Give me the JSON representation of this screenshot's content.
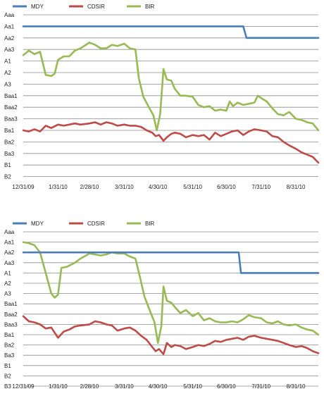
{
  "chart_data": [
    {
      "type": "line",
      "title": "",
      "xlabel": "",
      "ylabel": "",
      "legend_position": "top-left",
      "grid": true,
      "y_categories": [
        "Aaa",
        "Aa1",
        "Aa2",
        "Aa3",
        "A1",
        "A2",
        "A3",
        "Baa1",
        "Baa2",
        "Baa3",
        "Ba1",
        "Ba2",
        "Ba3",
        "B1",
        "B2"
      ],
      "x_tick_labels": [
        "12/31/09",
        "1/31/10",
        "2/28/10",
        "3/31/10",
        "4/30/10",
        "5/31/10",
        "6/30/10",
        "7/31/10",
        "8/31/10"
      ],
      "x_range": [
        "12/31/09",
        "9/20/10"
      ],
      "series": [
        {
          "name": "MDY",
          "color": "#4a7ebb",
          "step": true,
          "points": [
            [
              "12/31/09",
              "Aa1"
            ],
            [
              "7/15/10",
              "Aa1"
            ],
            [
              "7/18/10",
              "Aa2"
            ],
            [
              "9/20/10",
              "Aa2"
            ]
          ]
        },
        {
          "name": "CDSIR",
          "color": "#be4b48",
          "points": [
            [
              "12/31/09",
              10.0
            ],
            [
              "1/5/10",
              10.1
            ],
            [
              "1/10/10",
              9.9
            ],
            [
              "1/15/10",
              10.1
            ],
            [
              "1/20/10",
              9.6
            ],
            [
              "1/25/10",
              9.8
            ],
            [
              "1/31/10",
              9.5
            ],
            [
              "2/5/10",
              9.6
            ],
            [
              "2/10/10",
              9.5
            ],
            [
              "2/15/10",
              9.4
            ],
            [
              "2/20/10",
              9.5
            ],
            [
              "2/28/10",
              9.4
            ],
            [
              "3/5/10",
              9.3
            ],
            [
              "3/10/10",
              9.5
            ],
            [
              "3/15/10",
              9.3
            ],
            [
              "3/20/10",
              9.4
            ],
            [
              "3/25/10",
              9.6
            ],
            [
              "3/31/10",
              9.5
            ],
            [
              "4/5/10",
              9.6
            ],
            [
              "4/10/10",
              9.6
            ],
            [
              "4/15/10",
              9.7
            ],
            [
              "4/20/10",
              10.0
            ],
            [
              "4/25/10",
              10.2
            ],
            [
              "4/28/10",
              10.5
            ],
            [
              "5/1/10",
              10.4
            ],
            [
              "5/5/10",
              10.9
            ],
            [
              "5/8/10",
              10.6
            ],
            [
              "5/12/10",
              10.3
            ],
            [
              "5/15/10",
              10.2
            ],
            [
              "5/20/10",
              10.3
            ],
            [
              "5/25/10",
              10.6
            ],
            [
              "5/31/10",
              10.4
            ],
            [
              "6/5/10",
              10.5
            ],
            [
              "6/10/10",
              10.4
            ],
            [
              "6/15/10",
              10.8
            ],
            [
              "6/20/10",
              10.2
            ],
            [
              "6/25/10",
              10.5
            ],
            [
              "6/30/10",
              10.3
            ],
            [
              "7/5/10",
              10.1
            ],
            [
              "7/10/10",
              10.0
            ],
            [
              "7/15/10",
              10.4
            ],
            [
              "7/20/10",
              10.1
            ],
            [
              "7/25/10",
              9.9
            ],
            [
              "7/31/10",
              10.0
            ],
            [
              "8/5/10",
              10.1
            ],
            [
              "8/10/10",
              10.5
            ],
            [
              "8/15/10",
              10.6
            ],
            [
              "8/20/10",
              11.0
            ],
            [
              "8/25/10",
              11.3
            ],
            [
              "8/31/10",
              11.6
            ],
            [
              "9/5/10",
              11.9
            ],
            [
              "9/10/10",
              12.1
            ],
            [
              "9/15/10",
              12.3
            ],
            [
              "9/20/10",
              12.8
            ]
          ]
        },
        {
          "name": "BIR",
          "color": "#98b954",
          "points": [
            [
              "12/31/09",
              3.5
            ],
            [
              "1/5/10",
              3.1
            ],
            [
              "1/10/10",
              3.4
            ],
            [
              "1/15/10",
              3.2
            ],
            [
              "1/20/10",
              5.2
            ],
            [
              "1/25/10",
              5.3
            ],
            [
              "1/28/10",
              5.1
            ],
            [
              "1/31/10",
              3.9
            ],
            [
              "2/5/10",
              3.6
            ],
            [
              "2/10/10",
              3.6
            ],
            [
              "2/15/10",
              3.1
            ],
            [
              "2/20/10",
              2.9
            ],
            [
              "2/28/10",
              2.4
            ],
            [
              "3/5/10",
              2.6
            ],
            [
              "3/10/10",
              2.9
            ],
            [
              "3/15/10",
              2.9
            ],
            [
              "3/20/10",
              2.6
            ],
            [
              "3/25/10",
              2.7
            ],
            [
              "3/31/10",
              2.5
            ],
            [
              "4/5/10",
              2.9
            ],
            [
              "4/10/10",
              3.0
            ],
            [
              "4/13/10",
              5.5
            ],
            [
              "4/17/10",
              7.1
            ],
            [
              "4/22/10",
              8.0
            ],
            [
              "4/26/10",
              8.7
            ],
            [
              "4/29/10",
              10.0
            ],
            [
              "5/2/10",
              8.6
            ],
            [
              "5/5/10",
              4.7
            ],
            [
              "5/8/10",
              5.6
            ],
            [
              "5/12/10",
              5.7
            ],
            [
              "5/15/10",
              6.4
            ],
            [
              "5/20/10",
              7.0
            ],
            [
              "5/25/10",
              7.0
            ],
            [
              "5/31/10",
              7.1
            ],
            [
              "6/5/10",
              7.8
            ],
            [
              "6/10/10",
              8.0
            ],
            [
              "6/15/10",
              7.9
            ],
            [
              "6/20/10",
              8.3
            ],
            [
              "6/25/10",
              8.2
            ],
            [
              "6/30/10",
              8.3
            ],
            [
              "7/3/10",
              7.5
            ],
            [
              "7/6/10",
              7.9
            ],
            [
              "7/10/10",
              7.6
            ],
            [
              "7/15/10",
              7.8
            ],
            [
              "7/20/10",
              7.7
            ],
            [
              "7/25/10",
              7.6
            ],
            [
              "7/28/10",
              7.0
            ],
            [
              "7/31/10",
              7.2
            ],
            [
              "8/5/10",
              7.5
            ],
            [
              "8/10/10",
              8.1
            ],
            [
              "8/15/10",
              8.6
            ],
            [
              "8/20/10",
              8.7
            ],
            [
              "8/25/10",
              8.4
            ],
            [
              "8/31/10",
              9.0
            ],
            [
              "9/5/10",
              9.1
            ],
            [
              "9/10/10",
              9.3
            ],
            [
              "9/15/10",
              9.4
            ],
            [
              "9/20/10",
              10.0
            ]
          ]
        }
      ]
    },
    {
      "type": "line",
      "title": "",
      "xlabel": "",
      "ylabel": "",
      "legend_position": "top-left",
      "grid": true,
      "y_categories": [
        "Aaa",
        "Aa1",
        "Aa2",
        "Aa3",
        "A1",
        "A2",
        "A3",
        "Baa1",
        "Baa2",
        "Baa3",
        "Ba1",
        "Ba2",
        "Ba3",
        "B1",
        "B2",
        "B3"
      ],
      "x_tick_labels": [
        "12/31/09",
        "1/31/10",
        "2/28/10",
        "3/31/10",
        "4/30/10",
        "5/31/10",
        "6/30/10",
        "7/31/10",
        "8/31/10"
      ],
      "x_range": [
        "12/31/09",
        "9/20/10"
      ],
      "series": [
        {
          "name": "MDY",
          "color": "#4a7ebb",
          "step": true,
          "points": [
            [
              "12/31/09",
              "Aa2"
            ],
            [
              "7/11/10",
              "Aa2"
            ],
            [
              "7/13/10",
              "A1"
            ],
            [
              "9/20/10",
              "A1"
            ]
          ]
        },
        {
          "name": "CDSIR",
          "color": "#be4b48",
          "points": [
            [
              "12/31/09",
              8.2
            ],
            [
              "1/5/10",
              8.7
            ],
            [
              "1/10/10",
              8.8
            ],
            [
              "1/15/10",
              9.0
            ],
            [
              "1/20/10",
              9.4
            ],
            [
              "1/25/10",
              9.3
            ],
            [
              "1/31/10",
              10.3
            ],
            [
              "2/5/10",
              9.7
            ],
            [
              "2/10/10",
              9.5
            ],
            [
              "2/15/10",
              9.2
            ],
            [
              "2/20/10",
              9.1
            ],
            [
              "2/28/10",
              9.0
            ],
            [
              "3/5/10",
              8.7
            ],
            [
              "3/10/10",
              8.8
            ],
            [
              "3/15/10",
              9.0
            ],
            [
              "3/20/10",
              9.1
            ],
            [
              "3/25/10",
              9.6
            ],
            [
              "3/31/10",
              9.4
            ],
            [
              "4/5/10",
              9.3
            ],
            [
              "4/10/10",
              9.6
            ],
            [
              "4/15/10",
              10.1
            ],
            [
              "4/20/10",
              10.5
            ],
            [
              "4/25/10",
              11.2
            ],
            [
              "4/28/10",
              11.6
            ],
            [
              "5/1/10",
              11.4
            ],
            [
              "5/5/10",
              11.9
            ],
            [
              "5/8/10",
              10.8
            ],
            [
              "5/12/10",
              11.2
            ],
            [
              "5/15/10",
              11.0
            ],
            [
              "5/20/10",
              11.1
            ],
            [
              "5/25/10",
              11.4
            ],
            [
              "5/31/10",
              11.2
            ],
            [
              "6/5/10",
              11.0
            ],
            [
              "6/10/10",
              11.1
            ],
            [
              "6/15/10",
              10.9
            ],
            [
              "6/20/10",
              10.6
            ],
            [
              "6/25/10",
              10.7
            ],
            [
              "6/30/10",
              10.5
            ],
            [
              "7/5/10",
              10.4
            ],
            [
              "7/10/10",
              10.3
            ],
            [
              "7/15/10",
              10.5
            ],
            [
              "7/20/10",
              10.2
            ],
            [
              "7/25/10",
              10.1
            ],
            [
              "7/31/10",
              10.3
            ],
            [
              "8/5/10",
              10.4
            ],
            [
              "8/10/10",
              10.5
            ],
            [
              "8/15/10",
              10.6
            ],
            [
              "8/20/10",
              10.8
            ],
            [
              "8/25/10",
              11.0
            ],
            [
              "8/31/10",
              11.2
            ],
            [
              "9/5/10",
              11.1
            ],
            [
              "9/10/10",
              11.3
            ],
            [
              "9/15/10",
              11.6
            ],
            [
              "9/20/10",
              11.8
            ]
          ]
        },
        {
          "name": "BIR",
          "color": "#98b954",
          "points": [
            [
              "12/31/09",
              1.0
            ],
            [
              "1/5/10",
              1.1
            ],
            [
              "1/10/10",
              1.3
            ],
            [
              "1/15/10",
              2.0
            ],
            [
              "1/20/10",
              4.0
            ],
            [
              "1/25/10",
              6.0
            ],
            [
              "1/28/10",
              6.4
            ],
            [
              "1/31/10",
              6.1
            ],
            [
              "2/3/10",
              3.5
            ],
            [
              "2/8/10",
              3.4
            ],
            [
              "2/15/10",
              3.0
            ],
            [
              "2/20/10",
              2.6
            ],
            [
              "2/28/10",
              2.1
            ],
            [
              "3/5/10",
              2.2
            ],
            [
              "3/10/10",
              2.3
            ],
            [
              "3/15/10",
              2.2
            ],
            [
              "3/20/10",
              2.0
            ],
            [
              "3/25/10",
              2.1
            ],
            [
              "3/31/10",
              2.1
            ],
            [
              "4/5/10",
              2.4
            ],
            [
              "4/10/10",
              2.6
            ],
            [
              "4/14/10",
              4.4
            ],
            [
              "4/18/10",
              6.3
            ],
            [
              "4/23/10",
              7.7
            ],
            [
              "4/27/10",
              8.8
            ],
            [
              "4/30/10",
              10.8
            ],
            [
              "5/3/10",
              9.2
            ],
            [
              "5/5/10",
              5.3
            ],
            [
              "5/8/10",
              6.7
            ],
            [
              "5/12/10",
              6.9
            ],
            [
              "5/15/10",
              7.3
            ],
            [
              "5/20/10",
              7.9
            ],
            [
              "5/25/10",
              7.6
            ],
            [
              "5/31/10",
              8.2
            ],
            [
              "6/5/10",
              7.9
            ],
            [
              "6/10/10",
              8.6
            ],
            [
              "6/15/10",
              8.4
            ],
            [
              "6/20/10",
              8.7
            ],
            [
              "6/25/10",
              8.8
            ],
            [
              "6/30/10",
              8.8
            ],
            [
              "7/5/10",
              8.7
            ],
            [
              "7/10/10",
              8.8
            ],
            [
              "7/15/10",
              8.5
            ],
            [
              "7/20/10",
              8.1
            ],
            [
              "7/25/10",
              8.3
            ],
            [
              "7/31/10",
              8.4
            ],
            [
              "8/5/10",
              8.8
            ],
            [
              "8/10/10",
              8.9
            ],
            [
              "8/15/10",
              8.7
            ],
            [
              "8/20/10",
              9.0
            ],
            [
              "8/25/10",
              9.1
            ],
            [
              "8/31/10",
              9.0
            ],
            [
              "9/5/10",
              9.3
            ],
            [
              "9/10/10",
              9.5
            ],
            [
              "9/15/10",
              9.6
            ],
            [
              "9/20/10",
              10.0
            ]
          ]
        }
      ]
    }
  ]
}
